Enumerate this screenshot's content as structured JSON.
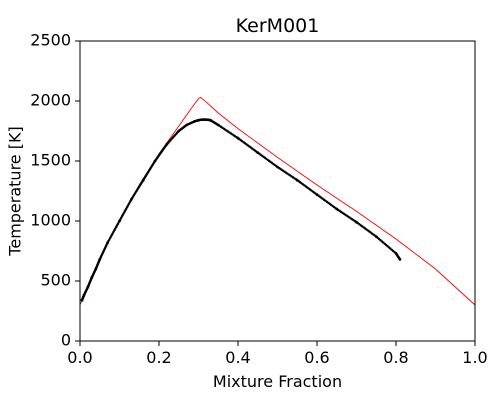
{
  "chart_data": {
    "type": "scatter",
    "title": "KerM001",
    "xlabel": "Mixture Fraction",
    "ylabel": "Temperature [K]",
    "xlim": [
      0.0,
      1.0
    ],
    "ylim": [
      0,
      2500
    ],
    "xticks": [
      0.0,
      0.2,
      0.4,
      0.6,
      0.8,
      1.0
    ],
    "xtick_labels": [
      "0.0",
      "0.2",
      "0.4",
      "0.6",
      "0.8",
      "1.0"
    ],
    "yticks": [
      0,
      500,
      1000,
      1500,
      2000,
      2500
    ],
    "ytick_labels": [
      "0",
      "500",
      "1000",
      "1500",
      "2000",
      "2500"
    ],
    "grid": false,
    "legend": "none",
    "series": [
      {
        "type": "line",
        "color": "#ff0000",
        "x": [
          0.0,
          0.05,
          0.1,
          0.15,
          0.2,
          0.25,
          0.28,
          0.3,
          0.305,
          0.32,
          0.35,
          0.4,
          0.5,
          0.6,
          0.7,
          0.8,
          0.9,
          1.0
        ],
        "y": [
          300,
          680,
          1010,
          1300,
          1560,
          1790,
          1930,
          2020,
          2030,
          1990,
          1900,
          1770,
          1530,
          1300,
          1080,
          850,
          600,
          300
        ]
      },
      {
        "type": "scatter",
        "color": "#000000",
        "x": [
          0.005,
          0.01,
          0.02,
          0.03,
          0.04,
          0.05,
          0.07,
          0.1,
          0.13,
          0.16,
          0.19,
          0.22,
          0.25,
          0.27,
          0.29,
          0.3,
          0.31,
          0.32,
          0.33,
          0.35,
          0.4,
          0.45,
          0.5,
          0.55,
          0.6,
          0.65,
          0.7,
          0.75,
          0.8,
          0.81
        ],
        "y": [
          340,
          380,
          450,
          530,
          600,
          680,
          820,
          1000,
          1180,
          1340,
          1500,
          1640,
          1750,
          1800,
          1830,
          1840,
          1845,
          1845,
          1840,
          1800,
          1690,
          1570,
          1450,
          1340,
          1220,
          1100,
          990,
          870,
          730,
          680
        ]
      }
    ]
  }
}
